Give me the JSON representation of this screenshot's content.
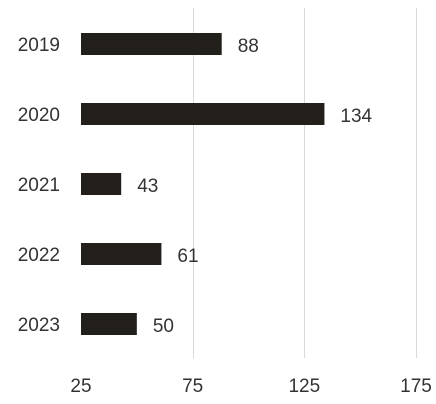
{
  "chart_data": {
    "type": "bar",
    "orientation": "horizontal",
    "categories": [
      "2019",
      "2020",
      "2021",
      "2022",
      "2023"
    ],
    "values": [
      88,
      134,
      43,
      61,
      50
    ],
    "value_labels": [
      "88",
      "134",
      "43",
      "61",
      "50"
    ],
    "xlim": [
      25,
      175
    ],
    "xticks": [
      25,
      75,
      125,
      175
    ],
    "xtick_labels": [
      "25",
      "75",
      "125",
      "175"
    ],
    "grid": "vertical",
    "legend": "none",
    "bar_color": "#231f1a",
    "gridline_color": "#d9d9d9",
    "text_color": "#333333"
  }
}
